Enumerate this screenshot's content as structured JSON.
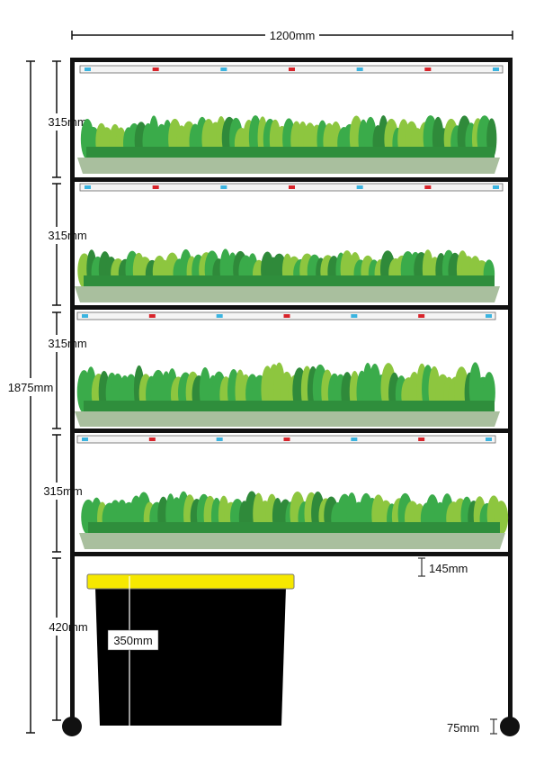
{
  "dimensions": {
    "overall_width": "1200mm",
    "overall_height": "1875mm",
    "shelf_heights": [
      "315mm",
      "315mm",
      "315mm",
      "315mm"
    ],
    "base_height": "420mm",
    "tank_height": "350mm",
    "shelf_to_light_gap": "145mm",
    "wheel_height": "75mm"
  },
  "colors": {
    "frame": "#111111",
    "led_strip_fill": "#f4f4f4",
    "led_blue": "#3bb4e0",
    "led_red": "#d8232a",
    "tray": "#a9bf9e",
    "grass_dark": "#2f8e3c",
    "lettuce_light": "#8dc63f",
    "lettuce_mid": "#3aab4a",
    "lettuce_dark": "#2f8a3a",
    "tank_lid": "#f6e800",
    "tank_body": "#000000"
  },
  "led_pattern": [
    "blue",
    "red",
    "blue",
    "red",
    "blue",
    "red",
    "blue"
  ]
}
